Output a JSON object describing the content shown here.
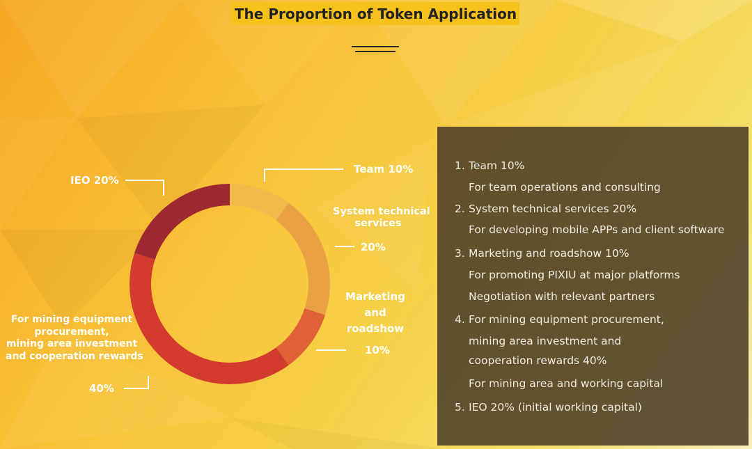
{
  "title": "The Proportion of Token Application",
  "chart_data": {
    "type": "pie",
    "categories": [
      "Team",
      "System technical services",
      "Marketing and roadshow",
      "For mining equipment procurement, mining area investment and cooperation rewards",
      "IEO"
    ],
    "values": [
      10,
      20,
      10,
      40,
      20
    ],
    "colors": [
      "#f1b84a",
      "#e9a144",
      "#e16136",
      "#d23b2d",
      "#9e2930"
    ]
  },
  "labels": {
    "team": "Team 10%",
    "sys_l1": "System technical",
    "sys_l2": "services",
    "sys_pct": "20%",
    "mkt_l1": "Marketing",
    "mkt_l2": "and",
    "mkt_l3": "roadshow",
    "mkt_pct": "10%",
    "mining_l1": "For mining equipment",
    "mining_l2": "procurement,",
    "mining_l3": "mining area investment",
    "mining_l4": "and cooperation rewards",
    "mining_pct": "40%",
    "ieo": "IEO 20%"
  },
  "panel": {
    "items": [
      {
        "num": "1.",
        "text": "Team 10%"
      },
      {
        "text": "For team operations and consulting"
      },
      {
        "num": "2.",
        "text": "System technical services 20%"
      },
      {
        "text": "For developing mobile APPs and client software"
      },
      {
        "num": "3.",
        "text": "Marketing and roadshow 10%"
      },
      {
        "text": "For promoting PIXIU at major platforms"
      },
      {
        "text": "Negotiation with relevant partners"
      },
      {
        "num": "4.",
        "text": "For mining equipment procurement,"
      },
      {
        "text": "mining area investment and"
      },
      {
        "text": "cooperation rewards 40%"
      },
      {
        "text": "For mining area and working capital"
      },
      {
        "num": "5.",
        "text": "IEO 20% (initial working capital)"
      }
    ]
  }
}
